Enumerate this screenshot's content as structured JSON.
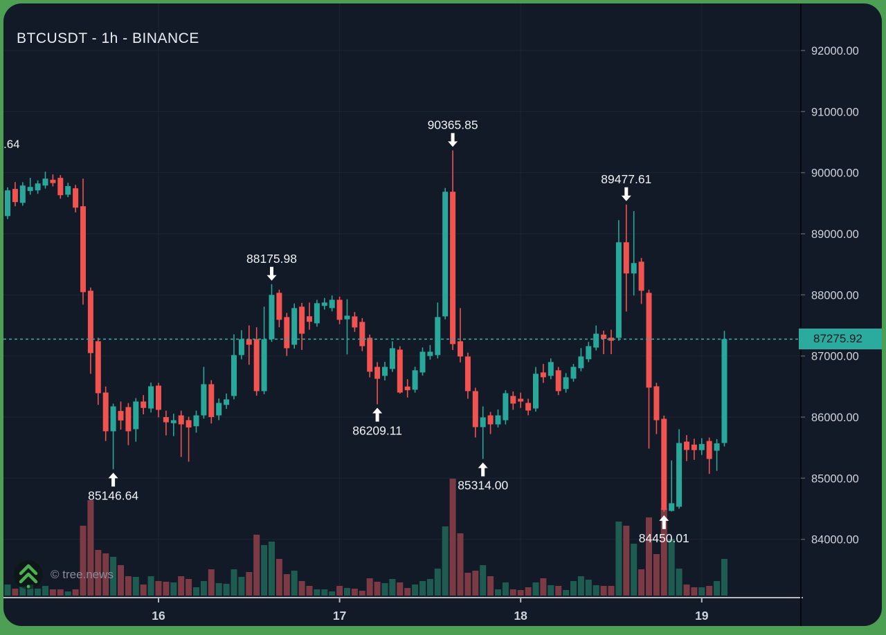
{
  "header": {
    "title": "BTCUSDT - 1h - BINANCE"
  },
  "watermark": {
    "text": "© tree.news",
    "icon": "tree-chevrons-icon"
  },
  "partial_label": {
    "text": ".64"
  },
  "price_line": {
    "label": "87275.92",
    "value": 87275.92
  },
  "colors": {
    "background": "#131a27",
    "frame_green": "#4d9f53",
    "up": "#2aa79b",
    "down": "#f05350",
    "volume_up": "#1e5c52",
    "volume_down": "#7c3a44",
    "accent": "#2bab9d",
    "grid": "#1d2433",
    "axis_text": "#cfd3db",
    "axis_line": "#b7bbc3",
    "separator": "#06080d",
    "annotation_text": "#f0f2f5",
    "price_label_text": "#0d1624"
  },
  "y_axis": {
    "labels": [
      {
        "text": "92000.00",
        "value": 92000
      },
      {
        "text": "91000.00",
        "value": 91000
      },
      {
        "text": "90000.00",
        "value": 90000
      },
      {
        "text": "89000.00",
        "value": 89000
      },
      {
        "text": "88000.00",
        "value": 88000
      },
      {
        "text": "87000.00",
        "value": 87000
      },
      {
        "text": "86000.00",
        "value": 86000
      },
      {
        "text": "85000.00",
        "value": 85000
      },
      {
        "text": "84000.00",
        "value": 84000
      }
    ]
  },
  "x_axis": {
    "ticks": [
      {
        "label": "16",
        "candle": 20
      },
      {
        "label": "17",
        "candle": 44
      },
      {
        "label": "18",
        "candle": 68
      },
      {
        "label": "19",
        "candle": 92
      }
    ]
  },
  "annotations": [
    {
      "text": "90365.85",
      "candle": 59,
      "dir": "high"
    },
    {
      "text": "89477.61",
      "candle": 82,
      "dir": "high"
    },
    {
      "text": "88175.98",
      "candle": 35,
      "dir": "high"
    },
    {
      "text": "86209.11",
      "candle": 49,
      "dir": "low"
    },
    {
      "text": "85314.00",
      "candle": 63,
      "dir": "low"
    },
    {
      "text": "85146.64",
      "candle": 14,
      "dir": "low"
    },
    {
      "text": "84450.01",
      "candle": 87,
      "dir": "low"
    }
  ],
  "chart_data": {
    "type": "candlestick",
    "symbol": "BTCUSDT",
    "interval": "1h",
    "exchange": "BINANCE",
    "ylim": [
      83000,
      92850
    ],
    "grid": true,
    "note": "candles are [open, high, low, close, relative_volume]",
    "candles": [
      [
        89290,
        89760,
        89240,
        89711,
        16
      ],
      [
        89734,
        89847,
        89450,
        89519,
        10
      ],
      [
        89507,
        89845,
        89460,
        89790,
        13
      ],
      [
        89700,
        89915,
        89640,
        89767,
        16
      ],
      [
        89711,
        89875,
        89655,
        89824,
        10
      ],
      [
        89790,
        90017,
        89740,
        89903,
        14
      ],
      [
        89885,
        89972,
        89775,
        89830,
        9
      ],
      [
        89915,
        89960,
        89575,
        89632,
        9
      ],
      [
        89640,
        89835,
        89600,
        89780,
        6
      ],
      [
        89745,
        89800,
        89350,
        89428,
        9
      ],
      [
        89451,
        89903,
        87841,
        88045,
        101
      ],
      [
        88068,
        88120,
        86709,
        87048,
        138
      ],
      [
        87241,
        87300,
        86200,
        86391,
        66
      ],
      [
        86402,
        86500,
        85609,
        85768,
        61
      ],
      [
        85768,
        86220,
        85146.64,
        86175,
        56
      ],
      [
        86100,
        86255,
        85795,
        85945,
        44
      ],
      [
        86164,
        86230,
        85541,
        85768,
        28
      ],
      [
        85802,
        86310,
        85598,
        86255,
        27
      ],
      [
        86255,
        86360,
        86045,
        86150,
        16
      ],
      [
        86141,
        86565,
        86075,
        86504,
        28
      ],
      [
        86515,
        86561,
        85995,
        86119,
        21
      ],
      [
        86000,
        86105,
        85700,
        85915,
        20
      ],
      [
        85900,
        86055,
        85689,
        85949,
        19
      ],
      [
        86028,
        86105,
        85349,
        85881,
        28
      ],
      [
        85950,
        86005,
        85270,
        85830,
        24
      ],
      [
        85850,
        86105,
        85745,
        86028,
        12
      ],
      [
        86028,
        86822,
        85975,
        86538,
        21
      ],
      [
        86538,
        86605,
        85895,
        86000,
        38
      ],
      [
        86028,
        86305,
        85950,
        86232,
        18
      ],
      [
        86200,
        86385,
        86135,
        86290,
        17
      ],
      [
        86346,
        87354,
        86290,
        87015,
        38
      ],
      [
        87015,
        87422,
        86945,
        87275,
        27
      ],
      [
        87275,
        87501,
        86856,
        87184,
        34
      ],
      [
        87275,
        87470,
        86350,
        86425,
        88
      ],
      [
        86425,
        87808,
        86375,
        87275,
        73
      ],
      [
        87275,
        88175.98,
        87230,
        88000,
        78
      ],
      [
        88034,
        88085,
        87470,
        87592,
        53
      ],
      [
        87637,
        87705,
        87000,
        87127,
        31
      ],
      [
        87184,
        87860,
        87120,
        87784,
        36
      ],
      [
        87807,
        87870,
        87100,
        87365,
        21
      ],
      [
        87650,
        87875,
        87430,
        87560,
        14
      ],
      [
        87535,
        87920,
        87480,
        87864,
        9
      ],
      [
        87820,
        87950,
        87760,
        87875,
        9
      ],
      [
        87784,
        87990,
        87730,
        87920,
        6
      ],
      [
        87920,
        87970,
        87520,
        87592,
        14
      ],
      [
        87600,
        87930,
        87026,
        87660,
        11
      ],
      [
        87648,
        87720,
        87395,
        87467,
        10
      ],
      [
        87558,
        87620,
        87080,
        87161,
        7
      ],
      [
        87297,
        87350,
        86650,
        86743,
        25
      ],
      [
        86822,
        86900,
        86209.11,
        86627,
        20
      ],
      [
        86675,
        86905,
        86600,
        86822,
        18
      ],
      [
        86788,
        87240,
        86740,
        87127,
        24
      ],
      [
        87104,
        87160,
        86385,
        86402,
        19
      ],
      [
        86500,
        86620,
        86320,
        86440,
        11
      ],
      [
        86448,
        86825,
        86400,
        86766,
        16
      ],
      [
        86731,
        87140,
        86680,
        87070,
        21
      ],
      [
        87000,
        87180,
        86940,
        87070,
        24
      ],
      [
        87015,
        87875,
        86960,
        87637,
        39
      ],
      [
        87648,
        89750,
        87600,
        89688,
        100
      ],
      [
        89688,
        90365.85,
        87100,
        87195,
        169
      ],
      [
        87241,
        87784,
        86895,
        86992,
        90
      ],
      [
        86992,
        87055,
        86300,
        86425,
        33
      ],
      [
        86425,
        86480,
        85666,
        85836,
        36
      ],
      [
        85836,
        86175,
        85314.0,
        85995,
        44
      ],
      [
        86028,
        86085,
        85722,
        85881,
        28
      ],
      [
        85881,
        86125,
        85830,
        86028,
        9
      ],
      [
        85949,
        86440,
        85880,
        86391,
        19
      ],
      [
        86346,
        86420,
        86120,
        86221,
        9
      ],
      [
        86300,
        86400,
        86150,
        86255,
        8
      ],
      [
        86232,
        86300,
        86030,
        86107,
        12
      ],
      [
        86141,
        86820,
        86090,
        86709,
        19
      ],
      [
        86731,
        86870,
        86560,
        86652,
        25
      ],
      [
        86675,
        86960,
        86620,
        86901,
        15
      ],
      [
        86766,
        86820,
        86360,
        86425,
        14
      ],
      [
        86460,
        86720,
        86400,
        86652,
        8
      ],
      [
        86629,
        86870,
        86580,
        86822,
        21
      ],
      [
        86800,
        87130,
        86750,
        86992,
        28
      ],
      [
        86947,
        87230,
        86900,
        87161,
        23
      ],
      [
        87138,
        87500,
        87090,
        87365,
        15
      ],
      [
        87350,
        87415,
        87030,
        87280,
        14
      ],
      [
        87300,
        87430,
        87030,
        87250,
        14
      ],
      [
        87297,
        89224,
        87250,
        88861,
        107
      ],
      [
        88861,
        89477.61,
        87728,
        88351,
        101
      ],
      [
        88351,
        89371,
        87989,
        88521,
        75
      ],
      [
        88544,
        88605,
        87852,
        88068,
        38
      ],
      [
        88034,
        88085,
        85485,
        86482,
        113
      ],
      [
        86504,
        86560,
        85722,
        85949,
        60
      ],
      [
        85972,
        86025,
        84450.01,
        84480,
        126
      ],
      [
        84465,
        85292,
        84455,
        84590,
        82
      ],
      [
        84533,
        85802,
        84500,
        85576,
        39
      ],
      [
        85598,
        85705,
        85280,
        85462,
        16
      ],
      [
        85550,
        85645,
        85300,
        85460,
        12
      ],
      [
        85460,
        85655,
        85380,
        85560,
        12
      ],
      [
        85609,
        85665,
        85070,
        85315,
        14
      ],
      [
        85450,
        85640,
        85120,
        85570,
        21
      ],
      [
        85576,
        87410,
        85520,
        87275.92,
        53
      ]
    ]
  }
}
